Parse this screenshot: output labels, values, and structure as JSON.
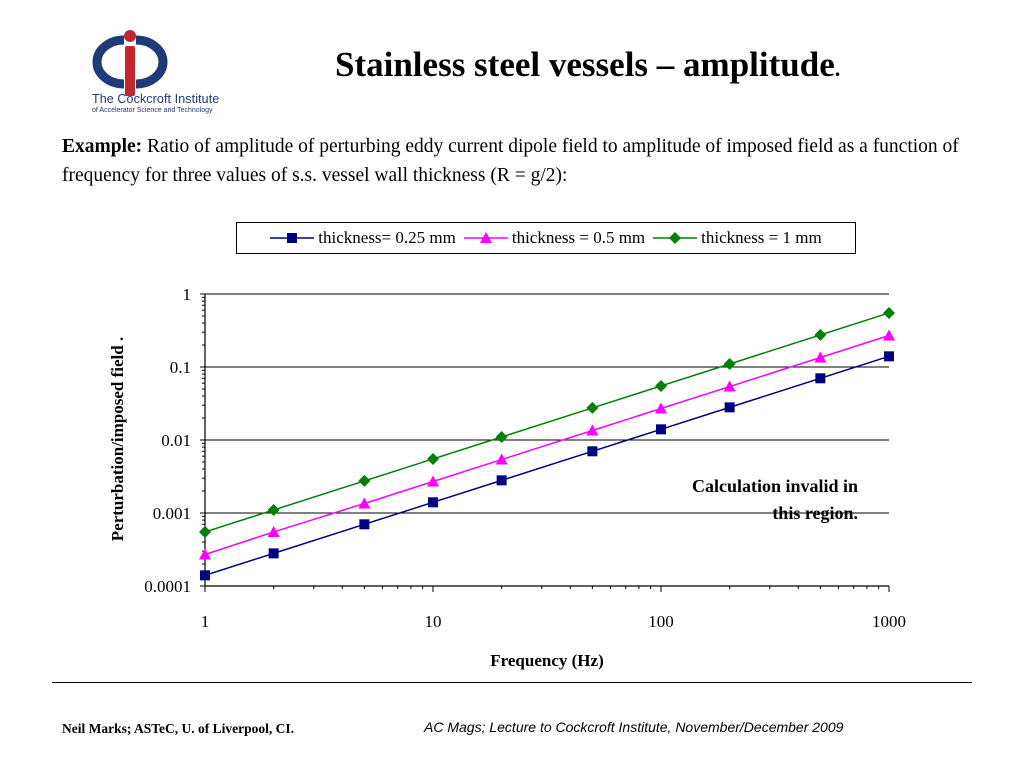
{
  "logo": {
    "name": "The Cockcroft Institute",
    "tagline": "of Accelerator Science and Technology"
  },
  "slide": {
    "title": "Stainless steel vessels – amplitude",
    "title_suffix": ".",
    "intro_bold": "Example:",
    "intro_text": " Ratio of amplitude of perturbing eddy current dipole field to amplitude of imposed field as a function of frequency for three values of s.s. vessel wall thickness (R = g/2):",
    "annotation": "Calculation invalid in this region."
  },
  "chart_data": {
    "type": "line",
    "title": "",
    "xlabel": "Frequency (Hz)",
    "ylabel": "Perturbation/imposed field .",
    "xscale": "log",
    "yscale": "log",
    "xlim": [
      1,
      1000
    ],
    "ylim": [
      0.0001,
      1
    ],
    "x_tick_labels": [
      "1",
      "10",
      "100",
      "1000"
    ],
    "y_tick_labels": [
      "1",
      "0.1",
      "0.01",
      "0.001",
      "0.0001"
    ],
    "grid": "horizontal major gridlines",
    "legend_placement": "top",
    "x": [
      1,
      2,
      5,
      10,
      20,
      50,
      100,
      200,
      500,
      1000
    ],
    "series": [
      {
        "name": "thickness= 0.25 mm",
        "color": "#000080",
        "marker": "square",
        "values": [
          0.00014,
          0.00028,
          0.0007,
          0.0014,
          0.0028,
          0.007,
          0.014,
          0.028,
          0.07,
          0.14
        ]
      },
      {
        "name": "thickness = 0.5 mm",
        "color": "#ff00ff",
        "marker": "triangle",
        "values": [
          0.00027,
          0.00055,
          0.00135,
          0.0027,
          0.0054,
          0.0135,
          0.027,
          0.054,
          0.135,
          0.27
        ]
      },
      {
        "name": "thickness = 1 mm",
        "color": "#008000",
        "marker": "diamond",
        "values": [
          0.00055,
          0.0011,
          0.00275,
          0.0055,
          0.011,
          0.0275,
          0.055,
          0.11,
          0.275,
          0.55
        ]
      }
    ]
  },
  "footer": {
    "left": "Neil Marks; ASTeC, U. of Liverpool, CI.",
    "right": "AC Mags; Lecture to Cockcroft Institute, November/December 2009"
  },
  "colors": {
    "logo_blue": "#1f3a78",
    "logo_red": "#c2262e"
  }
}
